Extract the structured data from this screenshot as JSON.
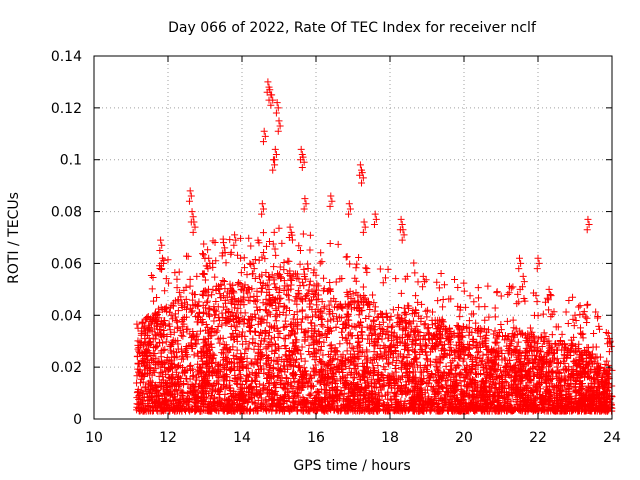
{
  "chart_data": {
    "type": "scatter",
    "title": "Day 066 of 2022, Rate Of TEC Index for receiver nclf",
    "xlabel": "GPS time / hours",
    "ylabel": "ROTI / TECUs",
    "xlim": [
      10,
      24
    ],
    "ylim": [
      0,
      0.14
    ],
    "xticks": [
      "10",
      "12",
      "14",
      "16",
      "18",
      "20",
      "22",
      "24"
    ],
    "yticks": [
      "0",
      "0.02",
      "0.04",
      "0.06",
      "0.08",
      "0.1",
      "0.12",
      "0.14"
    ],
    "grid": true,
    "marker": "+",
    "color": "#ff0000",
    "series": [
      {
        "name": "ROTI",
        "notable_points": [
          {
            "x": 11.3,
            "y": 0.037
          },
          {
            "x": 11.8,
            "y": 0.069
          },
          {
            "x": 11.85,
            "y": 0.062
          },
          {
            "x": 12.6,
            "y": 0.088
          },
          {
            "x": 12.65,
            "y": 0.08
          },
          {
            "x": 12.7,
            "y": 0.076
          },
          {
            "x": 13.1,
            "y": 0.062
          },
          {
            "x": 13.5,
            "y": 0.068
          },
          {
            "x": 13.8,
            "y": 0.071
          },
          {
            "x": 14.3,
            "y": 0.06
          },
          {
            "x": 14.6,
            "y": 0.111
          },
          {
            "x": 14.7,
            "y": 0.13
          },
          {
            "x": 14.75,
            "y": 0.127
          },
          {
            "x": 14.8,
            "y": 0.125
          },
          {
            "x": 14.85,
            "y": 0.1
          },
          {
            "x": 14.9,
            "y": 0.104
          },
          {
            "x": 14.95,
            "y": 0.122
          },
          {
            "x": 15.0,
            "y": 0.115
          },
          {
            "x": 14.55,
            "y": 0.083
          },
          {
            "x": 15.3,
            "y": 0.074
          },
          {
            "x": 15.6,
            "y": 0.104
          },
          {
            "x": 15.65,
            "y": 0.101
          },
          {
            "x": 15.7,
            "y": 0.085
          },
          {
            "x": 16.4,
            "y": 0.086
          },
          {
            "x": 16.9,
            "y": 0.083
          },
          {
            "x": 17.2,
            "y": 0.098
          },
          {
            "x": 17.25,
            "y": 0.095
          },
          {
            "x": 17.3,
            "y": 0.076
          },
          {
            "x": 17.6,
            "y": 0.079
          },
          {
            "x": 18.3,
            "y": 0.077
          },
          {
            "x": 18.35,
            "y": 0.073
          },
          {
            "x": 18.9,
            "y": 0.055
          },
          {
            "x": 21.5,
            "y": 0.062
          },
          {
            "x": 21.6,
            "y": 0.055
          },
          {
            "x": 22.0,
            "y": 0.062
          },
          {
            "x": 22.3,
            "y": 0.05
          },
          {
            "x": 23.0,
            "y": 0.04
          },
          {
            "x": 23.35,
            "y": 0.077
          },
          {
            "x": 23.9,
            "y": 0.033
          },
          {
            "x": 23.95,
            "y": 0.03
          }
        ],
        "bulk": {
          "x_range": [
            11.15,
            24.0
          ],
          "y_floor": 0.003,
          "envelope": [
            {
              "x": 11.2,
              "y": 0.037
            },
            {
              "x": 12.0,
              "y": 0.045
            },
            {
              "x": 12.5,
              "y": 0.048
            },
            {
              "x": 13.0,
              "y": 0.05
            },
            {
              "x": 13.5,
              "y": 0.052
            },
            {
              "x": 14.0,
              "y": 0.053
            },
            {
              "x": 14.5,
              "y": 0.055
            },
            {
              "x": 15.0,
              "y": 0.058
            },
            {
              "x": 15.5,
              "y": 0.058
            },
            {
              "x": 16.0,
              "y": 0.052
            },
            {
              "x": 16.5,
              "y": 0.05
            },
            {
              "x": 17.0,
              "y": 0.05
            },
            {
              "x": 17.5,
              "y": 0.045
            },
            {
              "x": 18.0,
              "y": 0.04
            },
            {
              "x": 18.5,
              "y": 0.044
            },
            {
              "x": 19.0,
              "y": 0.04
            },
            {
              "x": 19.5,
              "y": 0.038
            },
            {
              "x": 20.0,
              "y": 0.036
            },
            {
              "x": 20.5,
              "y": 0.035
            },
            {
              "x": 21.0,
              "y": 0.035
            },
            {
              "x": 21.5,
              "y": 0.034
            },
            {
              "x": 22.0,
              "y": 0.032
            },
            {
              "x": 22.5,
              "y": 0.03
            },
            {
              "x": 23.0,
              "y": 0.03
            },
            {
              "x": 23.5,
              "y": 0.025
            },
            {
              "x": 24.0,
              "y": 0.022
            }
          ]
        }
      }
    ]
  }
}
